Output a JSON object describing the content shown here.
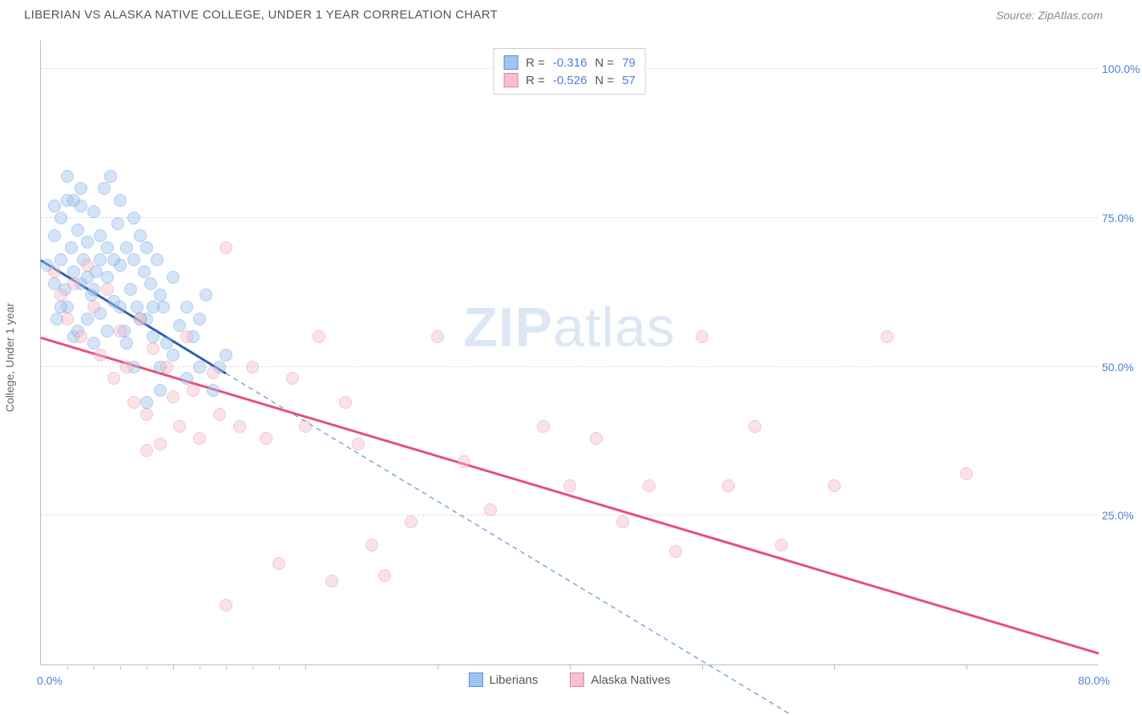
{
  "header": {
    "title": "LIBERIAN VS ALASKA NATIVE COLLEGE, UNDER 1 YEAR CORRELATION CHART",
    "source_label": "Source: ZipAtlas.com"
  },
  "watermark": {
    "bold": "ZIP",
    "light": "atlas"
  },
  "chart": {
    "type": "scatter",
    "ylabel": "College, Under 1 year",
    "xlim": [
      0,
      80
    ],
    "ylim": [
      0,
      105
    ],
    "origin_label": "0.0%",
    "xmax_label": "80.0%",
    "x_ticks_major": [
      10,
      20,
      30,
      40,
      50,
      60,
      70
    ],
    "x_ticks_minor": [
      2,
      4,
      6,
      8,
      12,
      14,
      16,
      18
    ],
    "y_gridlines": [
      25,
      50,
      75,
      100
    ],
    "y_tick_labels": [
      "25.0%",
      "50.0%",
      "75.0%",
      "100.0%"
    ],
    "background": "#ffffff",
    "grid_color": "#dddddd",
    "axis_color": "#bbbbbb",
    "tick_label_color": "#4a7fd8",
    "axis_label_color": "#666666",
    "marker_radius": 8,
    "marker_opacity": 0.45,
    "series": [
      {
        "key": "liberians",
        "label": "Liberians",
        "R": "-0.316",
        "N": "79",
        "fill": "#9ec4f0",
        "stroke": "#5a8fd6",
        "trend": {
          "x1": 0,
          "y1": 68,
          "x2": 14,
          "y2": 49,
          "color": "#2e5fb0",
          "width": 3,
          "dash": "none"
        },
        "trend_ext": {
          "x1": 14,
          "y1": 49,
          "x2": 58,
          "y2": -10,
          "color": "#7aa6de",
          "width": 1.5,
          "dash": "6 5"
        },
        "points": [
          [
            0.5,
            67
          ],
          [
            1,
            64
          ],
          [
            1,
            72
          ],
          [
            1.2,
            58
          ],
          [
            1.5,
            68
          ],
          [
            1.5,
            75
          ],
          [
            1.8,
            63
          ],
          [
            2,
            78
          ],
          [
            2,
            60
          ],
          [
            2.3,
            70
          ],
          [
            2.5,
            66
          ],
          [
            2.5,
            55
          ],
          [
            2.8,
            73
          ],
          [
            3,
            64
          ],
          [
            3,
            80
          ],
          [
            3.2,
            68
          ],
          [
            3.5,
            58
          ],
          [
            3.5,
            71
          ],
          [
            3.8,
            62
          ],
          [
            4,
            76
          ],
          [
            4,
            54
          ],
          [
            4.2,
            66
          ],
          [
            4.5,
            72
          ],
          [
            4.5,
            59
          ],
          [
            4.8,
            80
          ],
          [
            5,
            65
          ],
          [
            5,
            70
          ],
          [
            5.3,
            82
          ],
          [
            5.5,
            61
          ],
          [
            5.8,
            74
          ],
          [
            6,
            67
          ],
          [
            6,
            78
          ],
          [
            6.3,
            56
          ],
          [
            6.5,
            70
          ],
          [
            6.8,
            63
          ],
          [
            7,
            75
          ],
          [
            7,
            68
          ],
          [
            7.3,
            60
          ],
          [
            7.5,
            72
          ],
          [
            7.8,
            66
          ],
          [
            8,
            58
          ],
          [
            8,
            70
          ],
          [
            8.3,
            64
          ],
          [
            8.5,
            55
          ],
          [
            8.8,
            68
          ],
          [
            9,
            62
          ],
          [
            9,
            50
          ],
          [
            9.3,
            60
          ],
          [
            9.5,
            54
          ],
          [
            10,
            65
          ],
          [
            10,
            52
          ],
          [
            10.5,
            57
          ],
          [
            11,
            60
          ],
          [
            11,
            48
          ],
          [
            11.5,
            55
          ],
          [
            12,
            58
          ],
          [
            12,
            50
          ],
          [
            12.5,
            62
          ],
          [
            13,
            46
          ],
          [
            13.5,
            50
          ],
          [
            14,
            52
          ],
          [
            1,
            77
          ],
          [
            2,
            82
          ],
          [
            2.5,
            78
          ],
          [
            3,
            77
          ],
          [
            3.5,
            65
          ],
          [
            4,
            63
          ],
          [
            4.5,
            68
          ],
          [
            5,
            56
          ],
          [
            5.5,
            68
          ],
          [
            6,
            60
          ],
          [
            6.5,
            54
          ],
          [
            7,
            50
          ],
          [
            7.5,
            58
          ],
          [
            8,
            44
          ],
          [
            8.5,
            60
          ],
          [
            9,
            46
          ],
          [
            1.5,
            60
          ],
          [
            2.8,
            56
          ]
        ]
      },
      {
        "key": "alaska",
        "label": "Alaska Natives",
        "R": "-0.526",
        "N": "57",
        "fill": "#f6c0ce",
        "stroke": "#e680a0",
        "trend": {
          "x1": 0,
          "y1": 55,
          "x2": 80,
          "y2": 2,
          "color": "#e84e7a",
          "width": 3,
          "dash": "none"
        },
        "points": [
          [
            1,
            66
          ],
          [
            1.5,
            62
          ],
          [
            2,
            58
          ],
          [
            2.5,
            64
          ],
          [
            3,
            55
          ],
          [
            3.5,
            67
          ],
          [
            4,
            60
          ],
          [
            4.5,
            52
          ],
          [
            5,
            63
          ],
          [
            5.5,
            48
          ],
          [
            6,
            56
          ],
          [
            6.5,
            50
          ],
          [
            7,
            44
          ],
          [
            7.5,
            58
          ],
          [
            8,
            42
          ],
          [
            8.5,
            53
          ],
          [
            9,
            37
          ],
          [
            9.5,
            50
          ],
          [
            10,
            45
          ],
          [
            10.5,
            40
          ],
          [
            11,
            55
          ],
          [
            11.5,
            46
          ],
          [
            12,
            38
          ],
          [
            13,
            49
          ],
          [
            13.5,
            42
          ],
          [
            14,
            70
          ],
          [
            15,
            40
          ],
          [
            16,
            50
          ],
          [
            17,
            38
          ],
          [
            18,
            17
          ],
          [
            19,
            48
          ],
          [
            20,
            40
          ],
          [
            21,
            55
          ],
          [
            22,
            14
          ],
          [
            23,
            44
          ],
          [
            24,
            37
          ],
          [
            25,
            20
          ],
          [
            26,
            15
          ],
          [
            28,
            24
          ],
          [
            30,
            55
          ],
          [
            32,
            34
          ],
          [
            34,
            26
          ],
          [
            38,
            40
          ],
          [
            40,
            30
          ],
          [
            42,
            38
          ],
          [
            44,
            24
          ],
          [
            46,
            30
          ],
          [
            48,
            19
          ],
          [
            50,
            55
          ],
          [
            52,
            30
          ],
          [
            54,
            40
          ],
          [
            56,
            20
          ],
          [
            60,
            30
          ],
          [
            64,
            55
          ],
          [
            70,
            32
          ],
          [
            8,
            36
          ],
          [
            14,
            10
          ]
        ]
      }
    ],
    "legend_top": {
      "R_label": "R =",
      "N_label": "N ="
    },
    "legend_bottom": {
      "series1": "Liberians",
      "series2": "Alaska Natives"
    }
  }
}
